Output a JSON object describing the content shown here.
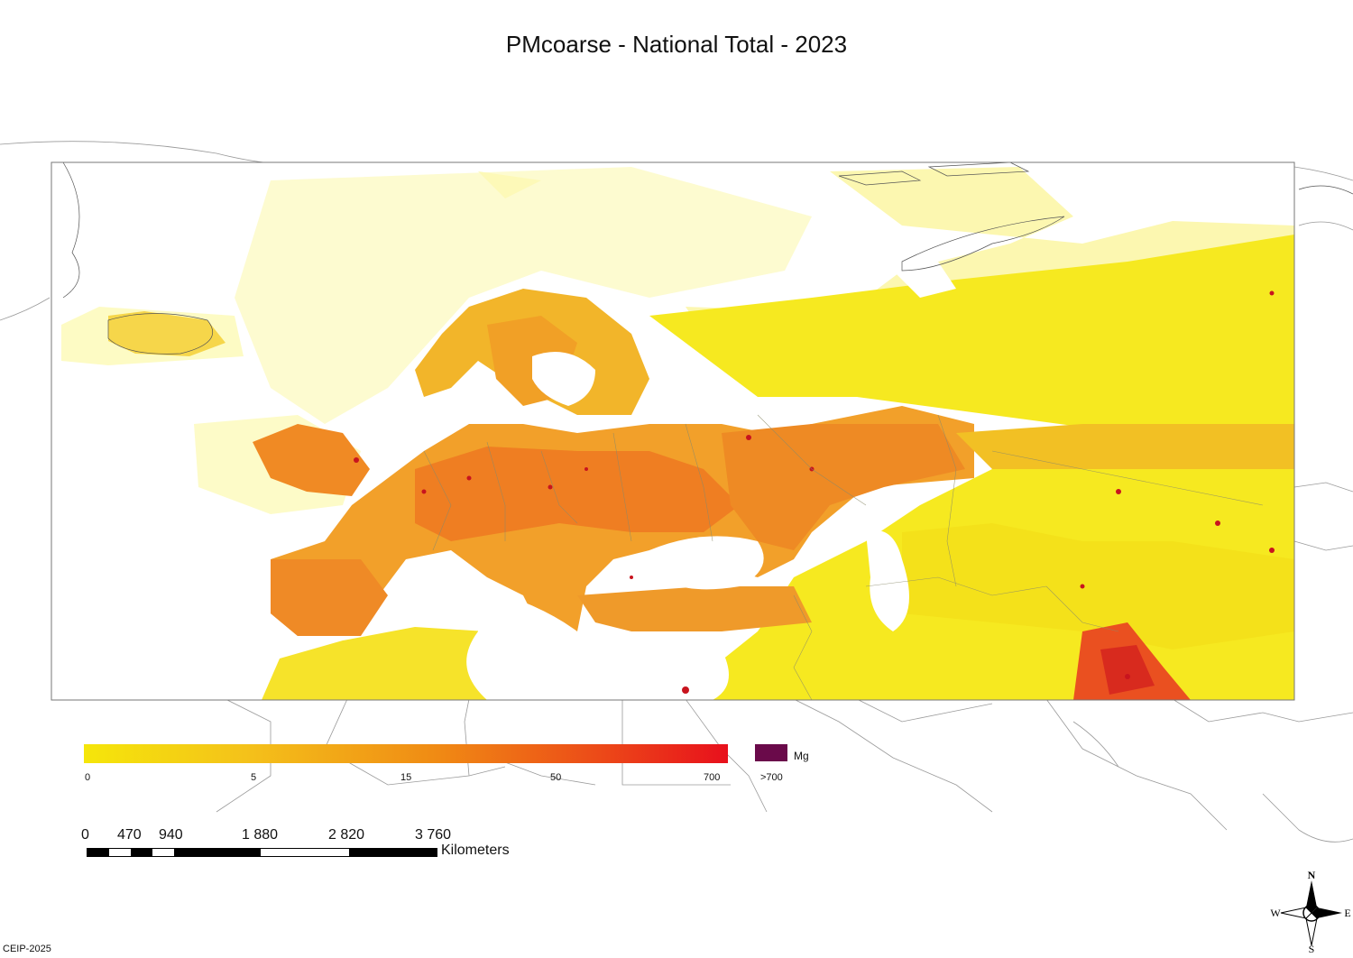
{
  "title": "PMcoarse - National Total - 2023",
  "legend": {
    "ticks": [
      "0",
      "5",
      "15",
      "50",
      "700"
    ],
    "max_label": ">700",
    "unit": "Mg",
    "colors": {
      "low": "#f5e60a",
      "mid": "#f08a14",
      "high": "#e8101c",
      "max": "#6a0a4a"
    }
  },
  "scalebar": {
    "labels": [
      "0",
      "470",
      "940",
      "1 880",
      "2 820",
      "3 760"
    ],
    "unit": "Kilometers"
  },
  "compass": {
    "n": "N",
    "s": "S",
    "e": "E",
    "w": "W"
  },
  "footer": "CEIP-2025"
}
